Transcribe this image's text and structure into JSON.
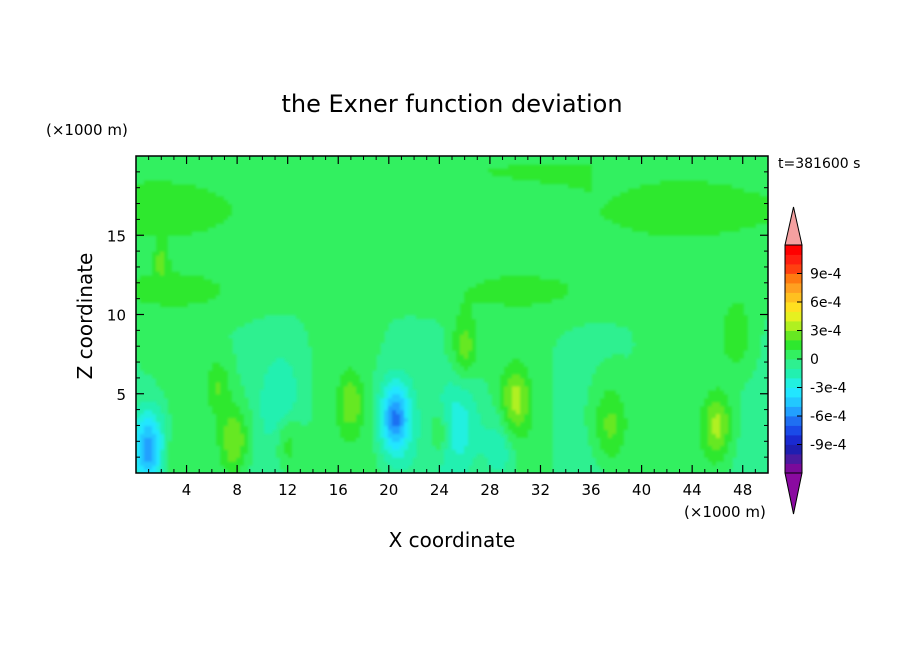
{
  "chart_data": {
    "type": "heatmap",
    "subtype": "filled-contour",
    "title": "the Exner function deviation",
    "xlabel": "X coordinate",
    "ylabel": "Z coordinate",
    "x_unit": "(×1000 m)",
    "y_unit": "(×1000 m)",
    "time_label": "t=381600 s",
    "xlim": [
      0,
      50
    ],
    "ylim": [
      0,
      20
    ],
    "x_ticks": [
      4,
      8,
      12,
      16,
      20,
      24,
      28,
      32,
      36,
      40,
      44,
      48
    ],
    "y_ticks": [
      5,
      10,
      15
    ],
    "colorbar": {
      "tick_labels": [
        "9e-4",
        "6e-4",
        "3e-4",
        "0",
        "-3e-4",
        "-6e-4",
        "-9e-4"
      ],
      "tick_values": [
        0.0009,
        0.0006,
        0.0003,
        0,
        -0.0003,
        -0.0006,
        -0.0009
      ],
      "levels": [
        -0.0011,
        -0.001,
        -0.0009,
        -0.0008,
        -0.0007,
        -0.0006,
        -0.0005,
        -0.0004,
        -0.0003,
        -0.0002,
        -0.0001,
        0,
        0.0001,
        0.0002,
        0.0003,
        0.0004,
        0.0005,
        0.0006,
        0.0007,
        0.0008,
        0.0009,
        0.001,
        0.0011
      ],
      "colors": [
        "#7a0a9a",
        "#4a1aa0",
        "#1e1eb0",
        "#1a2ad0",
        "#1a4ae8",
        "#1f6ff2",
        "#22a0ff",
        "#22c8ff",
        "#22e6ff",
        "#22f0e0",
        "#22f0b0",
        "#2ef090",
        "#33f060",
        "#2ee82e",
        "#66e822",
        "#b0f020",
        "#e6f020",
        "#ffe020",
        "#ffc020",
        "#ffa020",
        "#ff7a10",
        "#ff4010",
        "#ff1e10",
        "#ff0000"
      ],
      "extend_colors": {
        "below": "#8a0aa0",
        "above": "#f4a0a0"
      }
    },
    "blobs": [
      {
        "cx": 1.0,
        "cz": 1.5,
        "r": 1.6,
        "amp": -0.0006
      },
      {
        "cx": 20.5,
        "cz": 3.5,
        "r": 1.5,
        "amp": -0.00062
      },
      {
        "cx": 25.5,
        "cz": 3.0,
        "r": 2.0,
        "amp": -0.00025
      },
      {
        "cx": 28.8,
        "cz": 1.5,
        "r": 1.8,
        "amp": -0.00022
      },
      {
        "cx": 11.5,
        "cz": 4.5,
        "r": 2.0,
        "amp": -0.00018
      },
      {
        "cx": 7.8,
        "cz": 2.0,
        "r": 1.5,
        "amp": 0.00032
      },
      {
        "cx": 6.5,
        "cz": 5.5,
        "r": 1.2,
        "amp": 0.0002
      },
      {
        "cx": 12.0,
        "cz": 2.0,
        "r": 1.3,
        "amp": 0.00022
      },
      {
        "cx": 17.0,
        "cz": 4.5,
        "r": 1.3,
        "amp": 0.00025
      },
      {
        "cx": 26.0,
        "cz": 8.0,
        "r": 1.3,
        "amp": 0.00026
      },
      {
        "cx": 30.0,
        "cz": 4.5,
        "r": 1.5,
        "amp": 0.00034
      },
      {
        "cx": 37.5,
        "cz": 3.0,
        "r": 1.8,
        "amp": 0.00026
      },
      {
        "cx": 46.0,
        "cz": 3.0,
        "r": 1.4,
        "amp": 0.00033
      },
      {
        "cx": 47.5,
        "cz": 8.8,
        "r": 1.6,
        "amp": 0.0002
      },
      {
        "cx": 2.0,
        "cz": 13.3,
        "r": 0.6,
        "amp": 0.0002
      },
      {
        "cx": 2.5,
        "cz": 1.0,
        "r": 0.8,
        "amp": 0.0001
      },
      {
        "cx": 24.0,
        "cz": 2.5,
        "r": 1.0,
        "amp": 0.0002
      }
    ]
  }
}
